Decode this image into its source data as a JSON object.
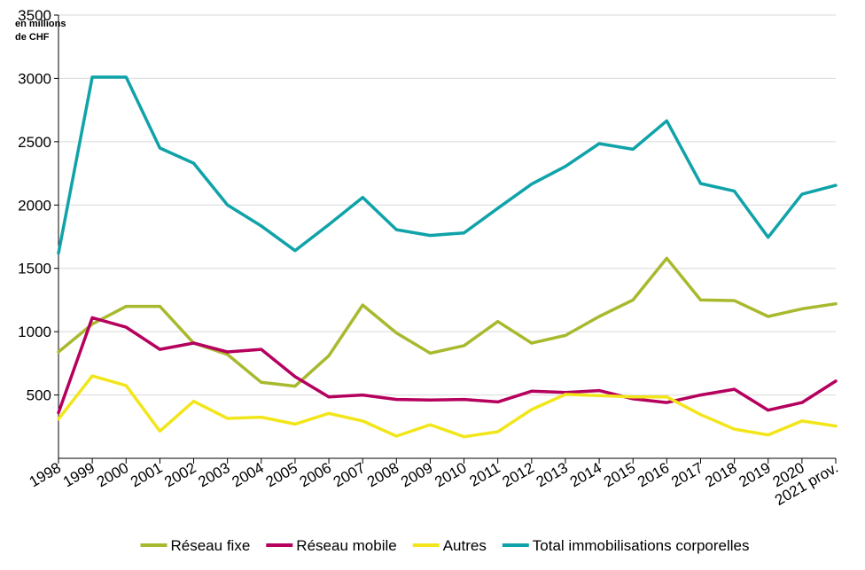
{
  "chart_data": {
    "type": "line",
    "title": "",
    "unit_label_line1": "en millions",
    "unit_label_line2": "de CHF",
    "xlabel": "",
    "ylabel": "",
    "ylim": [
      0,
      3500
    ],
    "yticks": [
      500,
      1000,
      1500,
      2000,
      2500,
      3000,
      3500
    ],
    "grid": true,
    "legend_position": "bottom",
    "categories": [
      "1998",
      "1999",
      "2000",
      "2001",
      "2002",
      "2003",
      "2004",
      "2005",
      "2006",
      "2007",
      "2008",
      "2009",
      "2010",
      "2011",
      "2012",
      "2013",
      "2014",
      "2015",
      "2016",
      "2017",
      "2018",
      "2019",
      "2020",
      "2021 prov."
    ],
    "series": [
      {
        "name": "Réseau fixe",
        "color": "#a9b92e",
        "values": [
          840,
          1060,
          1200,
          1200,
          910,
          820,
          600,
          570,
          810,
          1210,
          990,
          830,
          890,
          1080,
          910,
          970,
          1120,
          1250,
          1580,
          1250,
          1245,
          1120,
          1180,
          1220
        ]
      },
      {
        "name": "Réseau mobile",
        "color": "#b5005e",
        "values": [
          360,
          1110,
          1035,
          860,
          910,
          840,
          860,
          645,
          485,
          500,
          465,
          460,
          465,
          445,
          530,
          520,
          535,
          470,
          440,
          500,
          545,
          380,
          440,
          610
        ]
      },
      {
        "name": "Autres",
        "color": "#f2e61a",
        "values": [
          310,
          650,
          575,
          215,
          450,
          315,
          325,
          270,
          355,
          295,
          175,
          265,
          170,
          210,
          385,
          505,
          495,
          485,
          485,
          345,
          230,
          185,
          295,
          255
        ]
      },
      {
        "name": "Total immobilisations corporelles",
        "color": "#0fa3a9",
        "values": [
          1620,
          3010,
          3010,
          2450,
          2330,
          2000,
          1835,
          1640,
          1845,
          2060,
          1805,
          1760,
          1780,
          1975,
          2165,
          2305,
          2485,
          2440,
          2665,
          2170,
          2110,
          1745,
          2085,
          2155
        ]
      }
    ]
  }
}
